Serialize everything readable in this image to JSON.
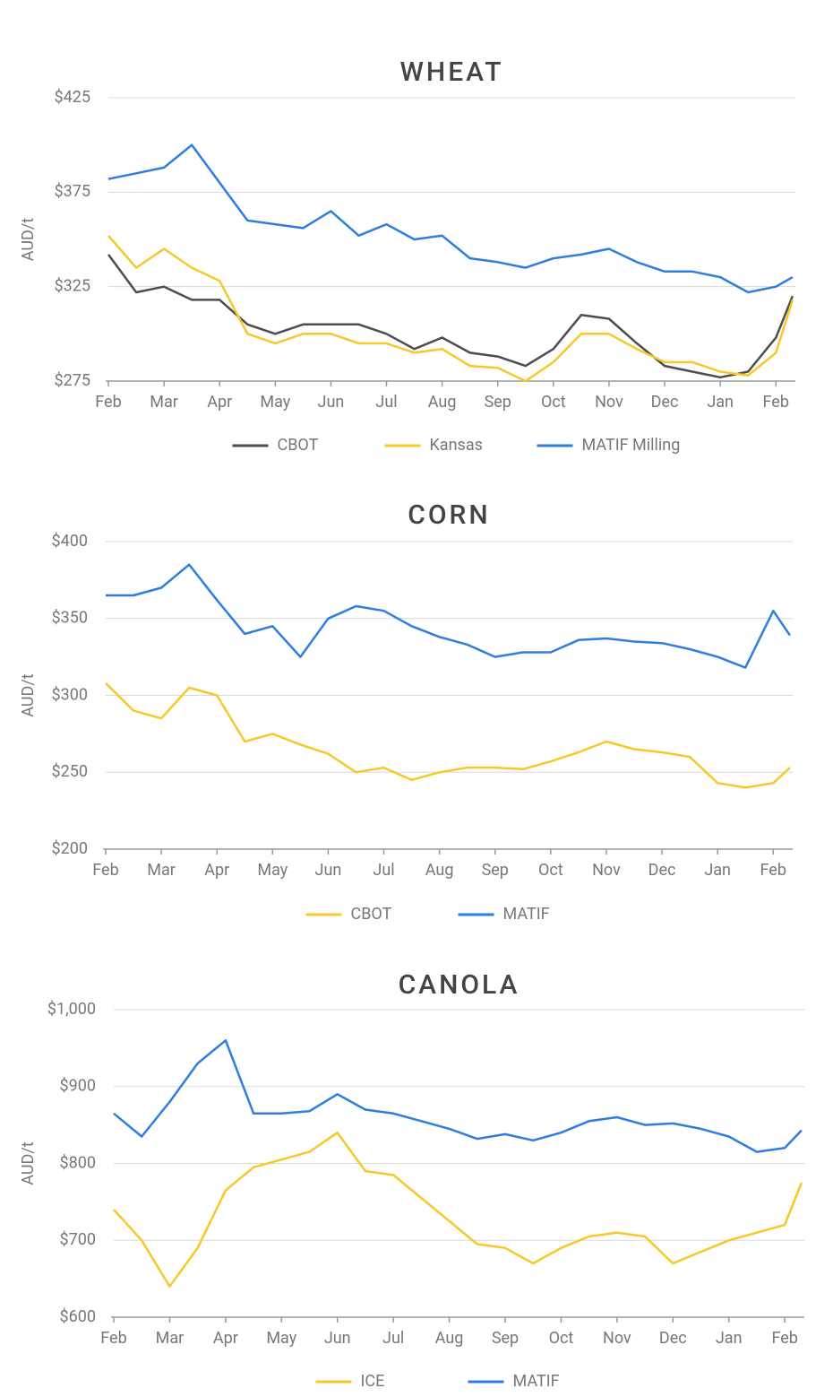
{
  "chart_data": [
    {
      "type": "line",
      "title": "WHEAT",
      "y_label": "AUD/t",
      "x": [
        0,
        0.5,
        1,
        1.5,
        2,
        2.5,
        3,
        3.5,
        4,
        4.5,
        5,
        5.5,
        6,
        6.5,
        7,
        7.5,
        8,
        8.5,
        9,
        9.5,
        10,
        10.5,
        11,
        11.5,
        12,
        12.3
      ],
      "xlim": [
        0,
        12.35
      ],
      "xticks": [
        {
          "value": 0,
          "label": "Feb"
        },
        {
          "value": 1,
          "label": "Mar"
        },
        {
          "value": 2,
          "label": "Apr"
        },
        {
          "value": 3,
          "label": "May"
        },
        {
          "value": 4,
          "label": "Jun"
        },
        {
          "value": 5,
          "label": "Jul"
        },
        {
          "value": 6,
          "label": "Aug"
        },
        {
          "value": 7,
          "label": "Sep"
        },
        {
          "value": 8,
          "label": "Oct"
        },
        {
          "value": 9,
          "label": "Nov"
        },
        {
          "value": 10,
          "label": "Dec"
        },
        {
          "value": 11,
          "label": "Jan"
        },
        {
          "value": 12,
          "label": "Feb"
        }
      ],
      "ylim": [
        275,
        425
      ],
      "yticks": [
        {
          "value": 275,
          "label": "$275"
        },
        {
          "value": 325,
          "label": "$325"
        },
        {
          "value": 375,
          "label": "$375"
        },
        {
          "value": 425,
          "label": "$425"
        }
      ],
      "grid": true,
      "series": [
        {
          "name": "CBOT",
          "color": "#4d4d4d",
          "values": [
            342,
            322,
            325,
            318,
            318,
            305,
            300,
            305,
            305,
            305,
            300,
            292,
            298,
            290,
            288,
            283,
            292,
            310,
            308,
            295,
            283,
            280,
            277,
            280,
            298,
            320
          ]
        },
        {
          "name": "Kansas",
          "color": "#f7c928",
          "values": [
            352,
            335,
            345,
            335,
            328,
            300,
            295,
            300,
            300,
            295,
            295,
            290,
            292,
            283,
            282,
            275,
            285,
            300,
            300,
            292,
            285,
            285,
            280,
            278,
            290,
            318
          ]
        },
        {
          "name": "MATIF Milling",
          "color": "#2f7de1",
          "values": [
            382,
            385,
            388,
            400,
            380,
            360,
            358,
            356,
            365,
            352,
            358,
            350,
            352,
            340,
            338,
            335,
            340,
            342,
            345,
            338,
            333,
            333,
            330,
            322,
            325,
            330
          ]
        }
      ]
    },
    {
      "type": "line",
      "title": "CORN",
      "y_label": "AUD/t",
      "x": [
        0,
        0.5,
        1,
        1.5,
        2,
        2.5,
        3,
        3.5,
        4,
        4.5,
        5,
        5.5,
        6,
        6.5,
        7,
        7.5,
        8,
        8.5,
        9,
        9.5,
        10,
        10.5,
        11,
        11.5,
        12,
        12.3
      ],
      "xlim": [
        0,
        12.35
      ],
      "xticks": [
        {
          "value": 0,
          "label": "Feb"
        },
        {
          "value": 1,
          "label": "Mar"
        },
        {
          "value": 2,
          "label": "Apr"
        },
        {
          "value": 3,
          "label": "May"
        },
        {
          "value": 4,
          "label": "Jun"
        },
        {
          "value": 5,
          "label": "Jul"
        },
        {
          "value": 6,
          "label": "Aug"
        },
        {
          "value": 7,
          "label": "Sep"
        },
        {
          "value": 8,
          "label": "Oct"
        },
        {
          "value": 9,
          "label": "Nov"
        },
        {
          "value": 10,
          "label": "Dec"
        },
        {
          "value": 11,
          "label": "Jan"
        },
        {
          "value": 12,
          "label": "Feb"
        }
      ],
      "ylim": [
        200,
        400
      ],
      "yticks": [
        {
          "value": 200,
          "label": "$200"
        },
        {
          "value": 250,
          "label": "$250"
        },
        {
          "value": 300,
          "label": "$300"
        },
        {
          "value": 350,
          "label": "$350"
        },
        {
          "value": 400,
          "label": "$400"
        }
      ],
      "grid": true,
      "series": [
        {
          "name": "CBOT",
          "color": "#f7c928",
          "values": [
            308,
            290,
            285,
            305,
            300,
            270,
            275,
            268,
            262,
            250,
            253,
            245,
            250,
            253,
            253,
            252,
            257,
            263,
            270,
            265,
            263,
            260,
            243,
            240,
            243,
            253
          ]
        },
        {
          "name": "MATIF",
          "color": "#2f7de1",
          "values": [
            365,
            365,
            370,
            385,
            362,
            340,
            345,
            325,
            350,
            358,
            355,
            345,
            338,
            333,
            325,
            328,
            328,
            336,
            337,
            335,
            334,
            330,
            325,
            318,
            355,
            339
          ]
        }
      ]
    },
    {
      "type": "line",
      "title": "CANOLA",
      "y_label": "AUD/t",
      "x": [
        0,
        0.5,
        1,
        1.5,
        2,
        2.5,
        3,
        3.5,
        4,
        4.5,
        5,
        5.5,
        6,
        6.5,
        7,
        7.5,
        8,
        8.5,
        9,
        9.5,
        10,
        10.5,
        11,
        11.5,
        12,
        12.3
      ],
      "xlim": [
        0,
        12.35
      ],
      "xticks": [
        {
          "value": 0,
          "label": "Feb"
        },
        {
          "value": 1,
          "label": "Mar"
        },
        {
          "value": 2,
          "label": "Apr"
        },
        {
          "value": 3,
          "label": "May"
        },
        {
          "value": 4,
          "label": "Jun"
        },
        {
          "value": 5,
          "label": "Jul"
        },
        {
          "value": 6,
          "label": "Aug"
        },
        {
          "value": 7,
          "label": "Sep"
        },
        {
          "value": 8,
          "label": "Oct"
        },
        {
          "value": 9,
          "label": "Nov"
        },
        {
          "value": 10,
          "label": "Dec"
        },
        {
          "value": 11,
          "label": "Jan"
        },
        {
          "value": 12,
          "label": "Feb"
        }
      ],
      "ylim": [
        600,
        1000
      ],
      "yticks": [
        {
          "value": 600,
          "label": "$600"
        },
        {
          "value": 700,
          "label": "$700"
        },
        {
          "value": 800,
          "label": "$800"
        },
        {
          "value": 900,
          "label": "$900"
        },
        {
          "value": 1000,
          "label": "$1,000"
        }
      ],
      "grid": true,
      "series": [
        {
          "name": "ICE",
          "color": "#f7c928",
          "values": [
            740,
            700,
            640,
            690,
            765,
            795,
            805,
            815,
            840,
            790,
            785,
            755,
            725,
            695,
            690,
            670,
            690,
            705,
            710,
            705,
            670,
            685,
            700,
            710,
            720,
            775
          ]
        },
        {
          "name": "MATIF",
          "color": "#2f7de1",
          "values": [
            865,
            835,
            880,
            930,
            960,
            865,
            865,
            868,
            890,
            870,
            865,
            855,
            845,
            832,
            838,
            830,
            840,
            855,
            860,
            850,
            852,
            845,
            835,
            815,
            820,
            843
          ]
        }
      ]
    }
  ]
}
